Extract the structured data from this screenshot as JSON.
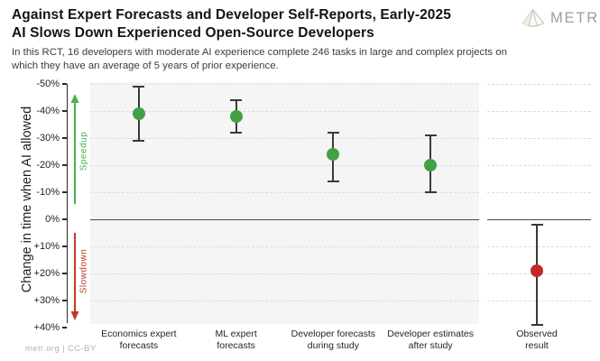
{
  "header": {
    "title_line1": "Against Expert Forecasts and Developer Self-Reports, Early-2025",
    "title_line2": "AI Slows Down Experienced Open-Source Developers",
    "logo_text": "METR"
  },
  "subtitle": "In this RCT, 16 developers with moderate AI experience complete 246 tasks in large and complex projects on which they have an average of 5 years of prior experience.",
  "footer": {
    "credit": "metr.org | CC-BY"
  },
  "chart_data": {
    "type": "scatter",
    "title": "Against Expert Forecasts and Developer Self-Reports, Early-2025 AI Slows Down Experienced Open-Source Developers",
    "ylabel": "Change in time when AI allowed",
    "ylim": [
      -50,
      40
    ],
    "y_axis_inverted": true,
    "grid": "horizontal dashed gridlines every 10%, solid dark line at 0%",
    "legend_position": "none",
    "yticks": [
      {
        "label": "-50%",
        "value": -50
      },
      {
        "label": "-40%",
        "value": -40
      },
      {
        "label": "-30%",
        "value": -30
      },
      {
        "label": "-20%",
        "value": -20
      },
      {
        "label": "-10%",
        "value": -10
      },
      {
        "label": "0%",
        "value": 0
      },
      {
        "label": "+10%",
        "value": 10
      },
      {
        "label": "+20%",
        "value": 20
      },
      {
        "label": "+30%",
        "value": 30
      },
      {
        "label": "+40%",
        "value": 40
      }
    ],
    "annotations": {
      "speedup": "Speedup",
      "slowdown": "Slowdown"
    },
    "points": [
      {
        "category": "Economics expert forecasts",
        "label_lines": [
          "Economics expert",
          "forecasts"
        ],
        "value": -39,
        "ci": [
          -49,
          -29
        ],
        "color": "#43a047",
        "panel": "forecasts"
      },
      {
        "category": "ML expert forecasts",
        "label_lines": [
          "ML expert",
          "forecasts"
        ],
        "value": -38,
        "ci": [
          -44,
          -32
        ],
        "color": "#43a047",
        "panel": "forecasts"
      },
      {
        "category": "Developer forecasts during study",
        "label_lines": [
          "Developer forecasts",
          "during study"
        ],
        "value": -24,
        "ci": [
          -32,
          -14
        ],
        "color": "#43a047",
        "panel": "forecasts"
      },
      {
        "category": "Developer estimates after study",
        "label_lines": [
          "Developer estimates",
          "after study"
        ],
        "value": -20,
        "ci": [
          -31,
          -10
        ],
        "color": "#43a047",
        "panel": "forecasts"
      },
      {
        "category": "Observed result",
        "label_lines": [
          "Observed",
          "result"
        ],
        "value": 19,
        "ci": [
          2,
          39
        ],
        "color": "#c62828",
        "panel": "observed"
      }
    ],
    "colors": {
      "speedup_green": "#4caf50",
      "slowdown_red": "#c0392b",
      "point_green": "#43a047",
      "point_red": "#c62828",
      "panel_background": "#f5f5f5",
      "gridline": "#dcdcdc",
      "zero_line": "#4a4a4a",
      "error_bar": "#3a3a3a"
    }
  }
}
